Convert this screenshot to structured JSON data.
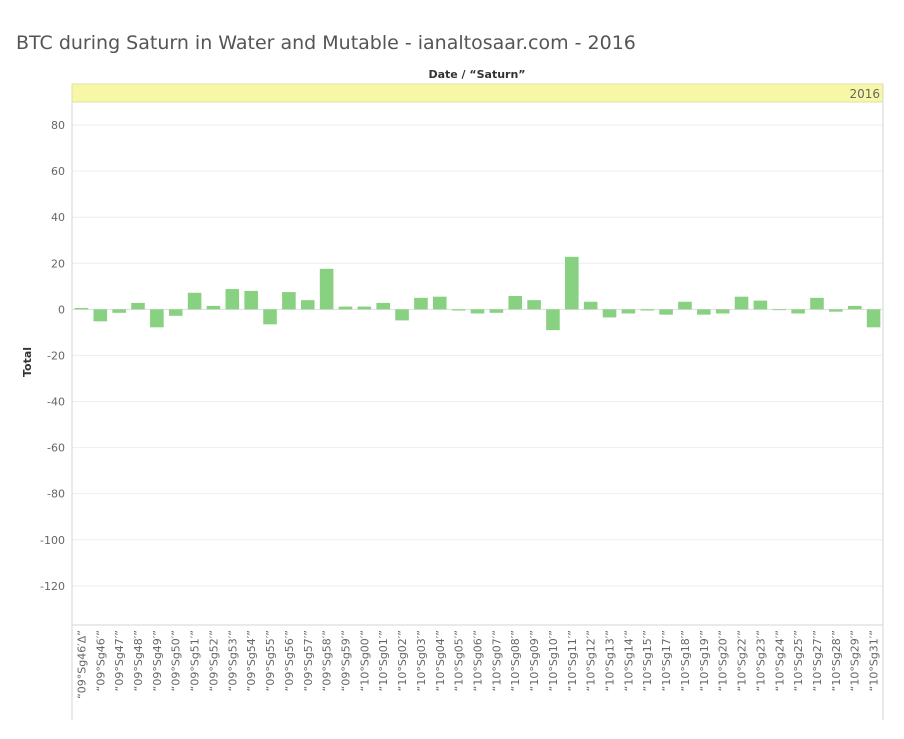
{
  "chart_data": {
    "type": "bar",
    "title": "BTC during Saturn in Water and Mutable - ianaltosaar.com - 2016",
    "header": "Date / “Saturn”",
    "panel": "2016",
    "ylabel": "Total",
    "xlabel": "",
    "ylim": [
      -137,
      90
    ],
    "yticks": [
      80,
      60,
      40,
      20,
      0,
      -20,
      -40,
      -60,
      -80,
      -100,
      -120
    ],
    "grid": true,
    "bar_color": "#87d180",
    "band_color": "#f7f7a8",
    "categories": [
      "“09°Sg46′Δ”",
      "“09°Sg46′”",
      "“09°Sg47′”",
      "“09°Sg48′”",
      "“09°Sg49′”",
      "“09°Sg50′”",
      "“09°Sg51′”",
      "“09°Sg52′”",
      "“09°Sg53′”",
      "“09°Sg54′”",
      "“09°Sg55′”",
      "“09°Sg56′”",
      "“09°Sg57′”",
      "“09°Sg58′”",
      "“09°Sg59′”",
      "“10°Sg00′”",
      "“10°Sg01′”",
      "“10°Sg02′”",
      "“10°Sg03′”",
      "“10°Sg04′”",
      "“10°Sg05′”",
      "“10°Sg06′”",
      "“10°Sg07′”",
      "“10°Sg08′”",
      "“10°Sg09′”",
      "“10°Sg10′”",
      "“10°Sg11′”",
      "“10°Sg12′”",
      "“10°Sg13′”",
      "“10°Sg14′”",
      "“10°Sg15′”",
      "“10°Sg17′”",
      "“10°Sg18′”",
      "“10°Sg19′”",
      "“10°Sg20′”",
      "“10°Sg22′”",
      "“10°Sg23′”",
      "“10°Sg24′”",
      "“10°Sg25′”",
      "“10°Sg27′”",
      "“10°Sg28′”",
      "“10°Sg29′”",
      "“10°Sg31′”"
    ],
    "values": [
      0.6,
      -5.2,
      -1.5,
      2.8,
      -7.8,
      -2.8,
      7.2,
      1.5,
      8.8,
      8.0,
      -6.5,
      7.5,
      4.0,
      17.6,
      1.2,
      1.2,
      2.8,
      -4.8,
      5.0,
      5.5,
      -0.5,
      -1.8,
      -1.5,
      5.8,
      4.0,
      -9.0,
      22.8,
      3.3,
      -3.5,
      -1.8,
      -0.5,
      -2.3,
      3.3,
      -2.3,
      -1.8,
      5.5,
      3.8,
      -0.3,
      -1.8,
      5.0,
      -1.0,
      1.5,
      -7.8
    ]
  }
}
